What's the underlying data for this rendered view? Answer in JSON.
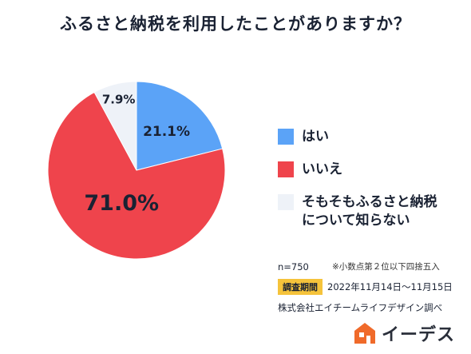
{
  "chart_data": {
    "type": "pie",
    "title": "ふるさと納税を利用したことがありますか？",
    "slices": [
      {
        "label": "はい",
        "value": 21.1,
        "display": "21.1%",
        "color": "#5ba3f7"
      },
      {
        "label": "いいえ",
        "value": 71.0,
        "display": "71.0%",
        "color": "#ef444c"
      },
      {
        "label": "そもそもふるさと納税\nについて知らない",
        "value": 7.9,
        "display": "7.9%",
        "color": "#eef2f8"
      }
    ],
    "start_angle_deg": 0,
    "direction": "clockwise",
    "legend_position": "right"
  },
  "notes": {
    "n": "n=750",
    "rounding_note": "※小数点第２位以下四捨五入",
    "period_label": "調査期間",
    "period_value": "2022年11月14日〜11月15日",
    "source": "株式会社エイチームライフデザイン調べ"
  },
  "brand": {
    "name": "イーデス",
    "mark_color": "#f06a2a"
  }
}
